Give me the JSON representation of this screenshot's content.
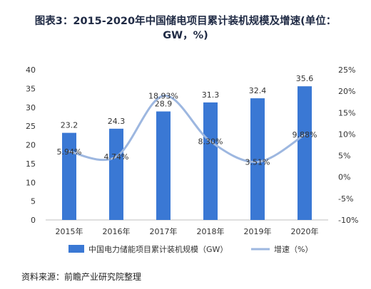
{
  "title": "图表3：2015-2020年中国储电项目累计装机规模及增速(单位：GW，%)",
  "source": "资料来源：前瞻产业研究院整理",
  "chart_data": {
    "type": "bar",
    "categories": [
      "2015年",
      "2016年",
      "2017年",
      "2018年",
      "2019年",
      "2020年"
    ],
    "series": [
      {
        "name": "中国电力储能项目累计装机规模（GW）",
        "type": "bar",
        "axis": "left",
        "values": [
          23.2,
          24.3,
          28.9,
          31.3,
          32.4,
          35.6
        ],
        "labels": [
          "23.2",
          "24.3",
          "28.9",
          "31.3",
          "32.4",
          "35.6"
        ],
        "color": "#3a78d4"
      },
      {
        "name": "增速（%）",
        "type": "line",
        "axis": "right",
        "values": [
          5.94,
          4.74,
          18.93,
          8.3,
          3.51,
          9.88
        ],
        "labels": [
          "5.94%",
          "4.74%",
          "18.93%",
          "8.30%",
          "3.51%",
          "9.88%"
        ],
        "color": "#9db7e0"
      }
    ],
    "ylim": [
      0,
      40
    ],
    "yticks": [
      "0",
      "5",
      "10",
      "15",
      "20",
      "25",
      "30",
      "35",
      "40"
    ],
    "y2lim": [
      -10,
      25
    ],
    "y2ticks": [
      "-10%",
      "-5%",
      "0%",
      "5%",
      "10%",
      "15%",
      "20%",
      "25%"
    ],
    "legend": "bottom",
    "grid": false
  }
}
